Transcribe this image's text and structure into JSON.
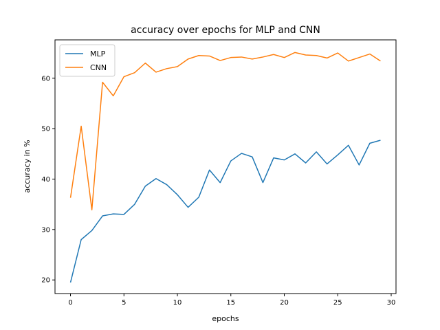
{
  "chart_data": {
    "type": "line",
    "title": "accuracy over epochs for MLP and CNN",
    "xlabel": "epochs",
    "ylabel": "accuracy in %",
    "xlim": [
      -1.45,
      30.45
    ],
    "ylim": [
      17.3,
      67.6
    ],
    "xticks": [
      0,
      5,
      10,
      15,
      20,
      25,
      30
    ],
    "yticks": [
      20,
      30,
      40,
      50,
      60
    ],
    "grid": false,
    "legend_position": "top-left",
    "x": [
      0,
      1,
      2,
      3,
      4,
      5,
      6,
      7,
      8,
      9,
      10,
      11,
      12,
      13,
      14,
      15,
      16,
      17,
      18,
      19,
      20,
      21,
      22,
      23,
      24,
      25,
      26,
      27,
      28,
      29
    ],
    "series": [
      {
        "name": "MLP",
        "color": "#1f77b4",
        "values": [
          19.5,
          28.0,
          29.8,
          32.7,
          33.1,
          33.0,
          35.0,
          38.6,
          40.1,
          38.9,
          36.9,
          34.4,
          36.4,
          41.8,
          39.3,
          43.6,
          45.1,
          44.4,
          39.3,
          44.2,
          43.8,
          45.0,
          43.2,
          45.4,
          43.0,
          44.8,
          46.7,
          42.8,
          47.1,
          47.7
        ]
      },
      {
        "name": "CNN",
        "color": "#ff7f0e",
        "values": [
          36.3,
          50.5,
          33.9,
          59.2,
          56.5,
          60.3,
          61.1,
          63.0,
          61.2,
          61.9,
          62.3,
          63.8,
          64.5,
          64.4,
          63.5,
          64.1,
          64.2,
          63.8,
          64.2,
          64.7,
          64.1,
          65.1,
          64.6,
          64.5,
          64.0,
          65.0,
          63.4,
          64.1,
          64.8,
          63.4
        ]
      }
    ]
  }
}
